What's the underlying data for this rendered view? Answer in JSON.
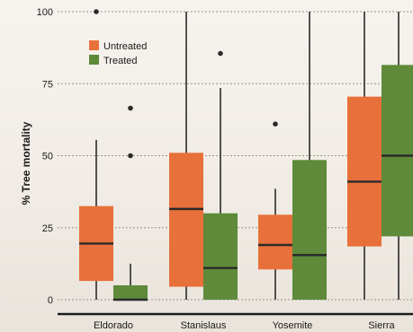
{
  "chart_data": {
    "type": "boxplot",
    "ylabel": "% Tree mortality",
    "xlabel": "",
    "ylim": [
      0,
      100
    ],
    "yticks": [
      0,
      25,
      50,
      75,
      100
    ],
    "grid": "horizontal",
    "legend_position": "top-left",
    "categories": [
      "Eldorado",
      "Stanislaus",
      "Yosemite",
      "Sierra"
    ],
    "series": [
      {
        "name": "Untreated",
        "color": "#e8703a",
        "boxes": [
          {
            "whisker_low": 0,
            "q1": 6.5,
            "median": 19.5,
            "q3": 32.5,
            "whisker_high": 55.5,
            "outliers": [
              100
            ]
          },
          {
            "whisker_low": 0,
            "q1": 4.5,
            "median": 31.5,
            "q3": 51,
            "whisker_high": 100,
            "outliers": []
          },
          {
            "whisker_low": 0,
            "q1": 10.5,
            "median": 19,
            "q3": 29.5,
            "whisker_high": 38.5,
            "outliers": [
              61
            ]
          },
          {
            "whisker_low": 0,
            "q1": 18.5,
            "median": 41,
            "q3": 70.5,
            "whisker_high": 100,
            "outliers": []
          }
        ]
      },
      {
        "name": "Treated",
        "color": "#5e8a3a",
        "boxes": [
          {
            "whisker_low": 0,
            "q1": 0,
            "median": 0,
            "q3": 5,
            "whisker_high": 12.5,
            "outliers": [
              50,
              66.5
            ]
          },
          {
            "whisker_low": 0,
            "q1": 0,
            "median": 11,
            "q3": 30,
            "whisker_high": 73.5,
            "outliers": [
              85.5
            ]
          },
          {
            "whisker_low": 0,
            "q1": 0,
            "median": 15.5,
            "q3": 48.5,
            "whisker_high": 100,
            "outliers": []
          },
          {
            "whisker_low": 0,
            "q1": 22,
            "median": 50,
            "q3": 81.5,
            "whisker_high": 100,
            "outliers": []
          }
        ]
      }
    ]
  }
}
